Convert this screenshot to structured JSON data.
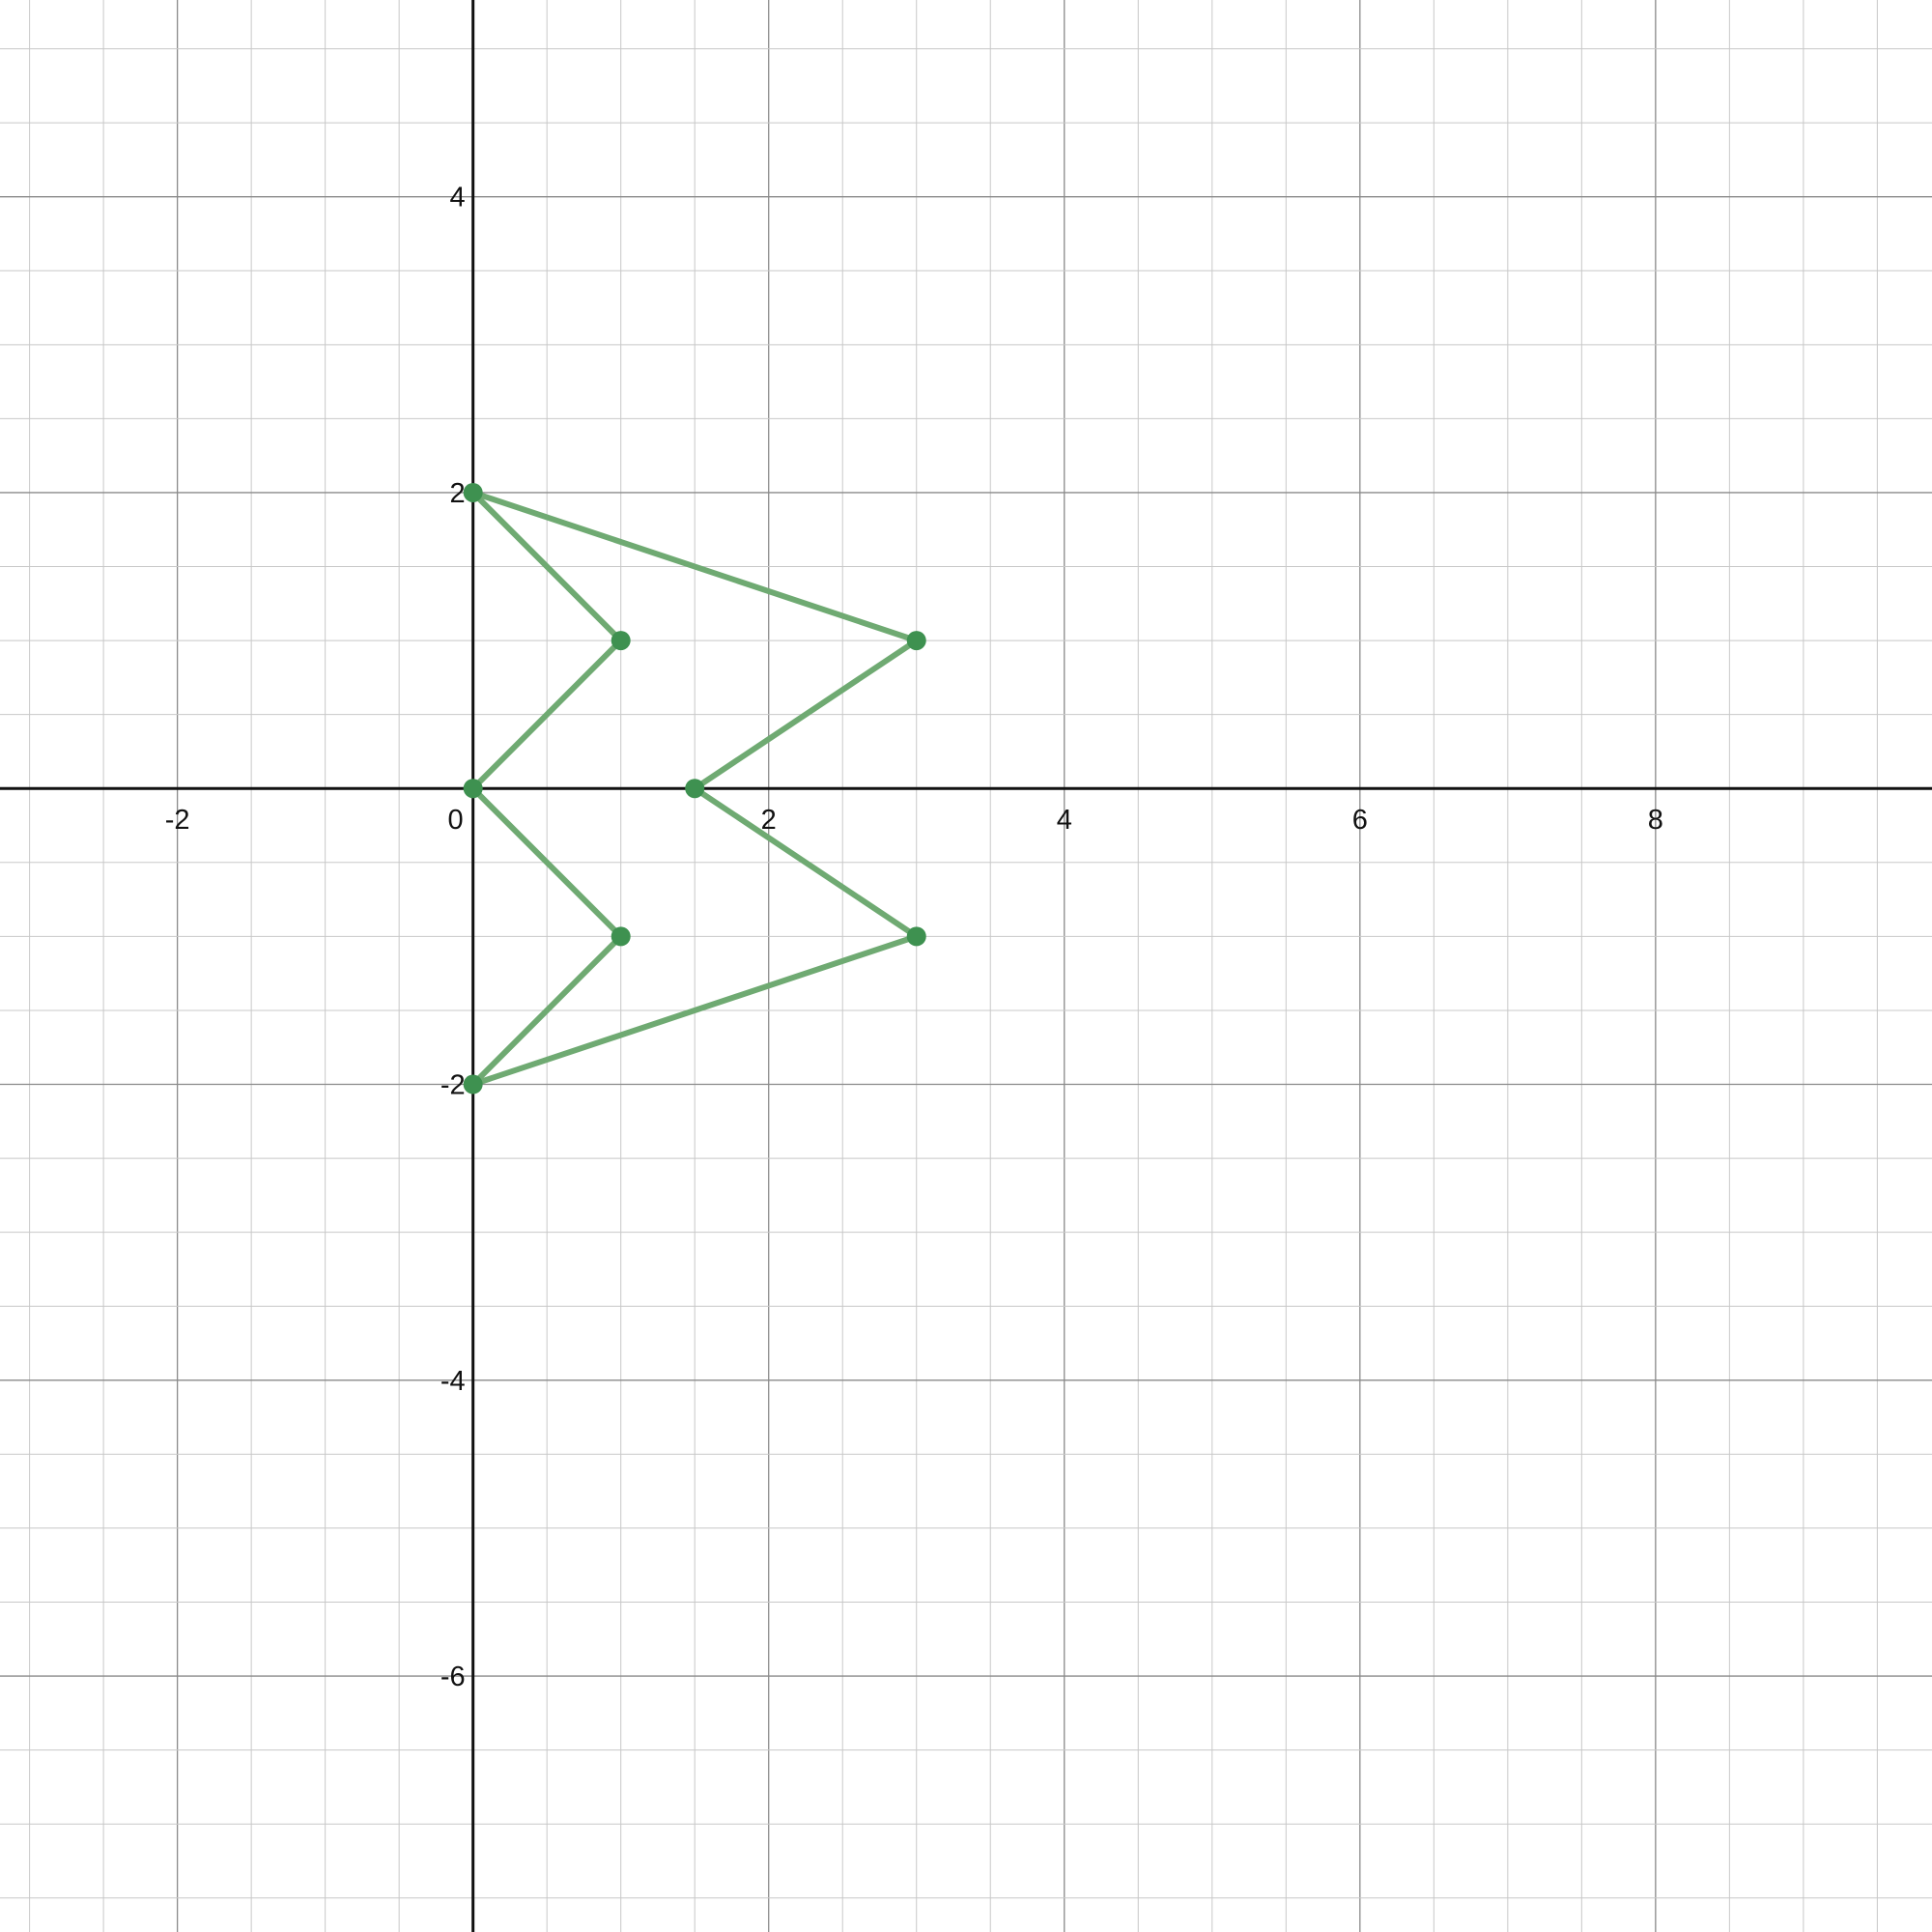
{
  "chart_data": {
    "type": "line",
    "title": "",
    "xlabel": "",
    "ylabel": "",
    "xlim": [
      -3.2,
      9.87
    ],
    "ylim": [
      -7.73,
      5.33
    ],
    "grid": true,
    "minor_step": 0.5,
    "major_step": 2,
    "x_ticks": [
      -2,
      2,
      4,
      6,
      8
    ],
    "y_ticks": [
      4,
      2,
      -2,
      -4,
      -6
    ],
    "x_tick_labels": [
      "-2",
      "2",
      "4",
      "6",
      "8"
    ],
    "y_tick_labels": [
      "4",
      "2",
      "-2",
      "-4",
      "-6"
    ],
    "origin_label": "0",
    "series": [
      {
        "color": "#6faa72",
        "point_color": "#3e9150",
        "points": [
          {
            "x": 0,
            "y": 2
          },
          {
            "x": 3,
            "y": 1
          },
          {
            "x": 1.5,
            "y": 0
          },
          {
            "x": 3,
            "y": -1
          },
          {
            "x": 0,
            "y": -2
          },
          {
            "x": 1,
            "y": -1
          },
          {
            "x": 0,
            "y": 0
          },
          {
            "x": 1,
            "y": 1
          },
          {
            "x": 0,
            "y": 2
          }
        ]
      }
    ]
  }
}
